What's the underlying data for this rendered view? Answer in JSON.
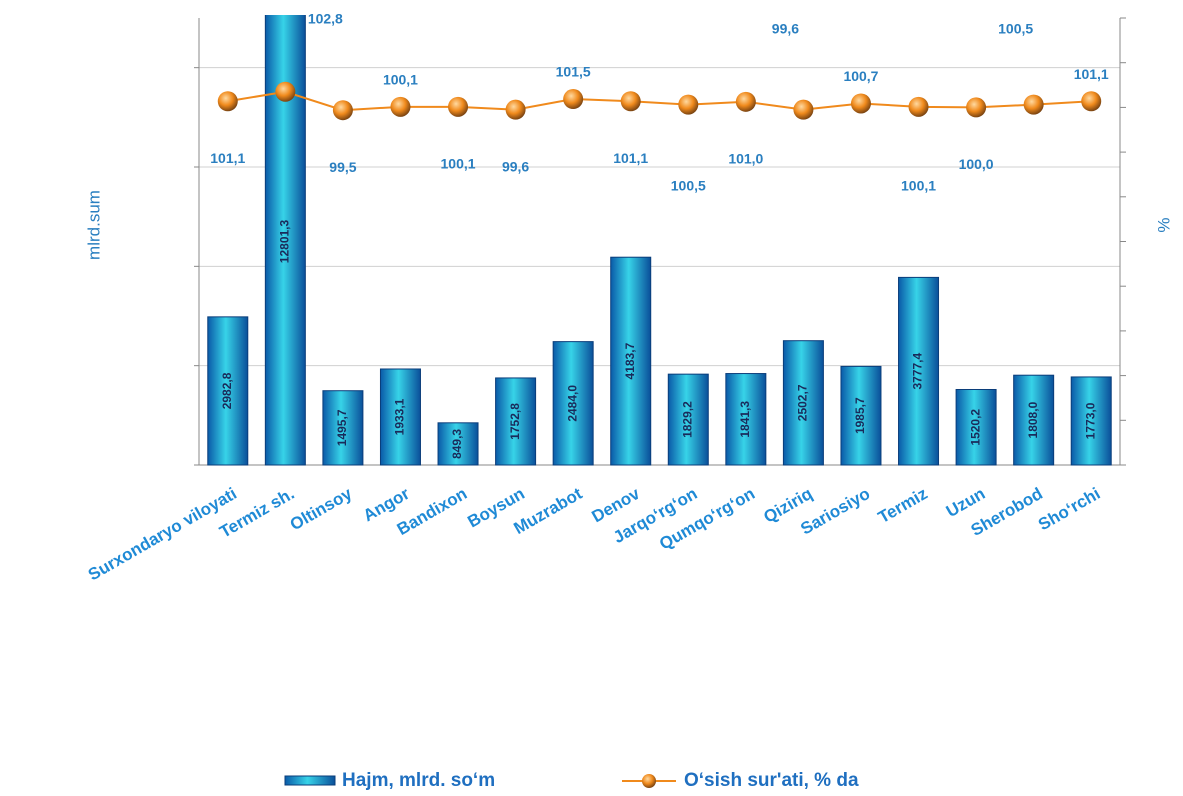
{
  "chart_data": {
    "type": "bar-line",
    "y_label": "mlrd.sum",
    "y2_label": "%",
    "categories": [
      "Surxondaryo viloyati",
      "Termiz sh.",
      "Oltinsoy",
      "Angor",
      "Bandixon",
      "Boysun",
      "Muzrabot",
      "Denov",
      "Jarqo‘rg‘on",
      "Qumqo‘rg‘on",
      "Qiziriq",
      "Sariosiyo",
      "Termiz",
      "Uzun",
      "Sherobod",
      "Sho‘rchi"
    ],
    "series": [
      {
        "name": "Hajm, mlrd. so‘m",
        "color": "#1aa8d8",
        "type": "bar",
        "values": [
          2982.8,
          12801.3,
          1495.7,
          1933.1,
          849.3,
          1752.8,
          2484.0,
          4183.7,
          1829.2,
          1841.3,
          2502.7,
          1985.7,
          3777.4,
          1520.2,
          1808.0,
          1773.0
        ],
        "value_labels": [
          "2982,8",
          "12801,3",
          "1495,7",
          "1933,1",
          "849,3",
          "1752,8",
          "2484,0",
          "4183,7",
          "1829,2",
          "1841,3",
          "2502,7",
          "1985,7",
          "3777,4",
          "1520,2",
          "1808,0",
          "1773,0"
        ]
      },
      {
        "name": "O‘sish sur'ati, % da",
        "color": "#f08a1c",
        "type": "line",
        "axis": "y2",
        "values": [
          101.1,
          102.8,
          99.5,
          100.1,
          100.1,
          99.6,
          101.5,
          101.1,
          100.5,
          101.0,
          99.6,
          100.7,
          100.1,
          100.0,
          100.5,
          101.1
        ],
        "value_labels": [
          "101,1",
          "102,8",
          "99,5",
          "100,1",
          "100,1",
          "99,6",
          "101,5",
          "101,1",
          "100,5",
          "101,0",
          "99,6",
          "100,7",
          "100,1",
          "100,0",
          "100,5",
          "101,1"
        ]
      }
    ],
    "ylim": [
      0,
      9000
    ],
    "yticks": [
      0,
      2000,
      4000,
      6000,
      8000
    ],
    "y2lim": [
      36,
      116
    ],
    "y2ticks": [
      36,
      44,
      52,
      60,
      68,
      76,
      84,
      92,
      100,
      108,
      116
    ],
    "grid": true,
    "legend": "bottom"
  }
}
